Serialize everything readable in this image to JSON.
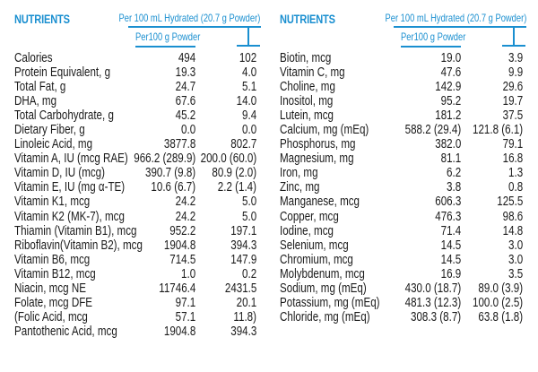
{
  "colors": {
    "accent": "#1a8fd0",
    "text": "#1a1a1a"
  },
  "panels": [
    {
      "title": "NUTRIENTS",
      "header_hydrated": "Per 100 mL Hydrated (20.7 g Powder)",
      "header_powder": "Per100 g  Powder",
      "rows": [
        {
          "name": "Calories",
          "powder": "494",
          "hydrated": "102"
        },
        {
          "name": "Protein Equivalent, g",
          "powder": "19.3",
          "hydrated": "4.0"
        },
        {
          "name": "Total Fat, g",
          "powder": "24.7",
          "hydrated": "5.1"
        },
        {
          "name": "DHA, mg",
          "powder": "67.6",
          "hydrated": "14.0"
        },
        {
          "name": "Total Carbohydrate, g",
          "powder": "45.2",
          "hydrated": "9.4"
        },
        {
          "name": " Dietary Fiber, g",
          "powder": "0.0",
          "hydrated": "0.0"
        },
        {
          "name": "Linoleic Acid, mg",
          "powder": "3877.8",
          "hydrated": "802.7"
        },
        {
          "name": "Vitamin A, IU (mcg RAE)",
          "powder": "966.2 (289.9)",
          "hydrated": "200.0 (60.0)"
        },
        {
          "name": "Vitamin D, IU (mcg)",
          "powder": "390.7 (9.8)",
          "hydrated": "80.9 (2.0)"
        },
        {
          "name": "Vitamin E, IU (mg α-TE)",
          "powder": "10.6 (6.7)",
          "hydrated": "2.2 (1.4)"
        },
        {
          "name": "Vitamin K1, mcg",
          "powder": "24.2",
          "hydrated": "5.0"
        },
        {
          "name": "Vitamin K2 (MK-7), mcg",
          "powder": "24.2",
          "hydrated": "5.0"
        },
        {
          "name": "Thiamin (Vitamin B1), mcg",
          "powder": "952.2",
          "hydrated": "197.1"
        },
        {
          "name": "Riboflavin(Vitamin B2), mcg",
          "powder": "1904.8",
          "hydrated": "394.3"
        },
        {
          "name": "Vitamin B6, mcg",
          "powder": "714.5",
          "hydrated": "147.9"
        },
        {
          "name": "Vitamin B12, mcg",
          "powder": "1.0",
          "hydrated": "0.2"
        },
        {
          "name": "Niacin, mcg NE",
          "powder": "11746.4",
          "hydrated": "2431.5"
        },
        {
          "name": "Folate, mcg DFE",
          "powder": "97.1",
          "hydrated": "20.1"
        },
        {
          "name": " (Folic Acid, mcg",
          "powder": "57.1",
          "hydrated": "11.8)"
        },
        {
          "name": "Pantothenic Acid, mcg",
          "powder": "1904.8",
          "hydrated": "394.3"
        }
      ]
    },
    {
      "title": "NUTRIENTS",
      "header_hydrated": "Per 100 mL Hydrated (20.7 g Powder)",
      "header_powder": "Per100 g  Powder",
      "rows": [
        {
          "name": "Biotin, mcg",
          "powder": "19.0",
          "hydrated": "3.9"
        },
        {
          "name": "Vitamin C, mg",
          "powder": "47.6",
          "hydrated": "9.9"
        },
        {
          "name": "Choline, mg",
          "powder": "142.9",
          "hydrated": "29.6"
        },
        {
          "name": "Inositol, mg",
          "powder": "95.2",
          "hydrated": "19.7"
        },
        {
          "name": "Lutein, mcg",
          "powder": "181.2",
          "hydrated": "37.5"
        },
        {
          "name": "Calcium, mg (mEq)",
          "powder": "588.2 (29.4)",
          "hydrated": "121.8 (6.1)"
        },
        {
          "name": "Phosphorus, mg",
          "powder": "382.0",
          "hydrated": "79.1"
        },
        {
          "name": "Magnesium, mg",
          "powder": "81.1",
          "hydrated": "16.8"
        },
        {
          "name": "Iron, mg",
          "powder": "6.2",
          "hydrated": "1.3"
        },
        {
          "name": "Zinc, mg",
          "powder": "3.8",
          "hydrated": "0.8"
        },
        {
          "name": "Manganese, mcg",
          "powder": "606.3",
          "hydrated": "125.5"
        },
        {
          "name": "Copper, mcg",
          "powder": "476.3",
          "hydrated": "98.6"
        },
        {
          "name": "Iodine, mcg",
          "powder": "71.4",
          "hydrated": "14.8"
        },
        {
          "name": "Selenium, mcg",
          "powder": "14.5",
          "hydrated": "3.0"
        },
        {
          "name": "Chromium, mcg",
          "powder": "14.5",
          "hydrated": "3.0"
        },
        {
          "name": "Molybdenum, mcg",
          "powder": "16.9",
          "hydrated": "3.5"
        },
        {
          "name": "Sodium, mg (mEq)",
          "powder": "430.0 (18.7)",
          "hydrated": "89.0 (3.9)"
        },
        {
          "name": "Potassium, mg (mEq)",
          "powder": "481.3 (12.3)",
          "hydrated": "100.0 (2.5)"
        },
        {
          "name": "Chloride, mg (mEq)",
          "powder": "308.3 (8.7)",
          "hydrated": "63.8 (1.8)"
        }
      ]
    }
  ]
}
